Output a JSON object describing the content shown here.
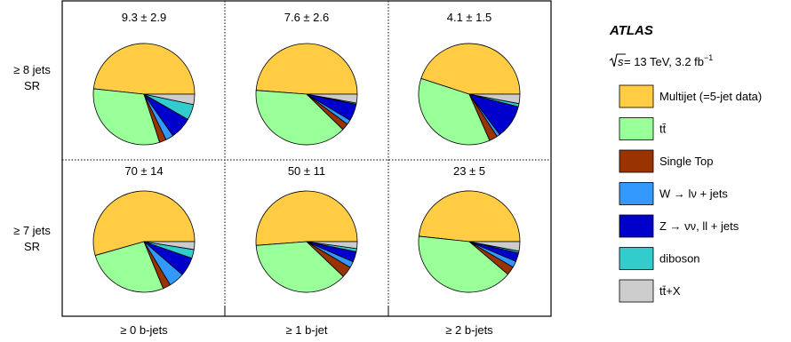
{
  "chart_data": {
    "type": "pie",
    "experiment": "ATLAS",
    "energy_label": {
      "sqrt": "s",
      "text": " = 13 TeV, 3.2 fb",
      "superscript": "−1"
    },
    "row_labels": [
      {
        "line1": "≥ 8 jets",
        "line2": "SR"
      },
      {
        "line1": "≥ 7 jets",
        "line2": "SR"
      }
    ],
    "column_labels": [
      "≥ 0 b-jets",
      "≥ 1 b-jet",
      "≥ 2 b-jets"
    ],
    "series": [
      {
        "name": "Multijet (=5-jet data)",
        "color": "#ffcc44"
      },
      {
        "name": "tt̄",
        "color": "#99ff99"
      },
      {
        "name": "Single Top",
        "color": "#993300"
      },
      {
        "name": "W → lν + jets",
        "color": "#3399ff"
      },
      {
        "name": "Z → νν, ll + jets",
        "color": "#0000cc"
      },
      {
        "name": "diboson",
        "color": "#33cccc"
      },
      {
        "name": "tt̄+X",
        "color": "#cccccc"
      }
    ],
    "panels": [
      {
        "row": 0,
        "col": 0,
        "label": "9.3 ± 2.9",
        "fractions": [
          0.483,
          0.317,
          0.022,
          0.025,
          0.07,
          0.05,
          0.033
        ]
      },
      {
        "row": 0,
        "col": 1,
        "label": "7.6 ± 2.6",
        "fractions": [
          0.488,
          0.389,
          0.022,
          0.015,
          0.054,
          0.004,
          0.028
        ]
      },
      {
        "row": 0,
        "col": 2,
        "label": "4.1 ± 1.5",
        "fractions": [
          0.45,
          0.366,
          0.027,
          0.01,
          0.107,
          0.01,
          0.03
        ]
      },
      {
        "row": 1,
        "col": 0,
        "label": "70 ± 14",
        "fractions": [
          0.544,
          0.268,
          0.025,
          0.05,
          0.06,
          0.028,
          0.025
        ]
      },
      {
        "row": 1,
        "col": 1,
        "label": "50 ± 11",
        "fractions": [
          0.512,
          0.367,
          0.036,
          0.02,
          0.033,
          0.01,
          0.022
        ]
      },
      {
        "row": 1,
        "col": 2,
        "label": "23 ± 5",
        "fractions": [
          0.483,
          0.405,
          0.028,
          0.02,
          0.028,
          0.006,
          0.03
        ]
      }
    ]
  }
}
